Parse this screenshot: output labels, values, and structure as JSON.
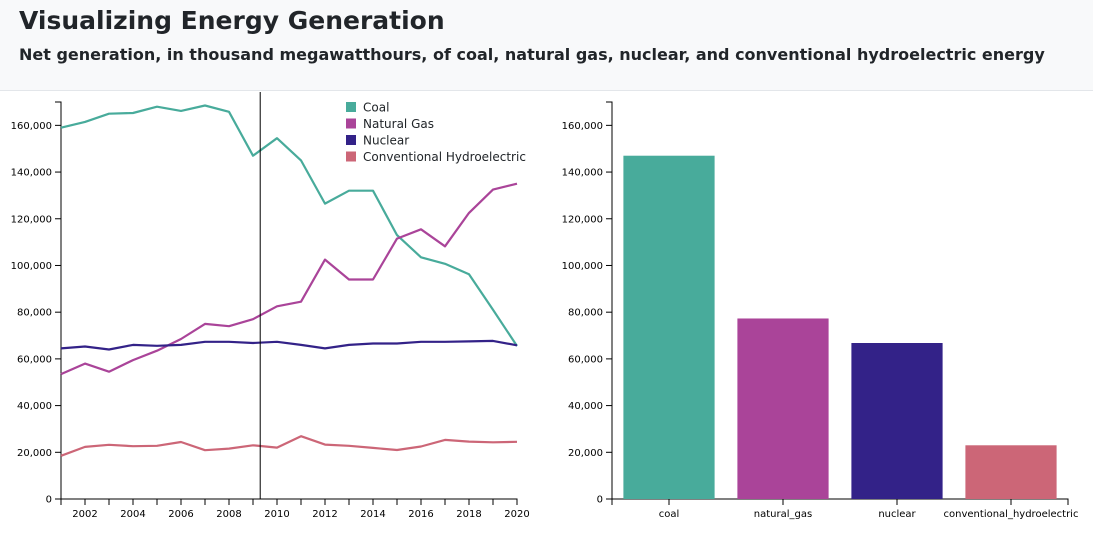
{
  "header": {
    "title": "Visualizing Energy Generation",
    "subtitle": "Net generation, in thousand megawatthours, of coal, natural gas, nuclear, and conventional hydroelectric energy"
  },
  "colors": {
    "coal": "#48ab9b",
    "natural_gas": "#aa4499",
    "nuclear": "#332288",
    "conventional_hydroelectric": "#cc6677"
  },
  "chart_data": [
    {
      "type": "line",
      "x": [
        2001,
        2002,
        2003,
        2004,
        2005,
        2006,
        2007,
        2008,
        2009,
        2010,
        2011,
        2012,
        2013,
        2014,
        2015,
        2016,
        2017,
        2018,
        2019,
        2020
      ],
      "xlim": [
        2001,
        2020
      ],
      "xticks": [
        "2002",
        "2004",
        "2006",
        "2008",
        "2010",
        "2012",
        "2014",
        "2016",
        "2018",
        "2020"
      ],
      "ylim": [
        0,
        170000
      ],
      "yticks": [
        "0",
        "20,000",
        "40,000",
        "60,000",
        "80,000",
        "100,000",
        "120,000",
        "140,000",
        "160,000"
      ],
      "marker_year": 2009.3,
      "legend_position": "top-center",
      "series": [
        {
          "name": "Coal",
          "key": "coal",
          "values": [
            159000,
            161500,
            165000,
            165300,
            168000,
            166200,
            168500,
            165800,
            147000,
            154500,
            145000,
            126500,
            132000,
            132000,
            113000,
            103500,
            100700,
            96200,
            81000,
            65500
          ]
        },
        {
          "name": "Natural Gas",
          "key": "natural_gas",
          "values": [
            53500,
            58000,
            54500,
            59500,
            63500,
            68500,
            75000,
            74000,
            77000,
            82500,
            84500,
            102500,
            94000,
            94000,
            111500,
            115500,
            108200,
            122500,
            132500,
            135000
          ]
        },
        {
          "name": "Nuclear",
          "key": "nuclear",
          "values": [
            64500,
            65300,
            64000,
            66000,
            65600,
            66000,
            67300,
            67300,
            66800,
            67300,
            66000,
            64500,
            66000,
            66600,
            66600,
            67300,
            67300,
            67500,
            67700,
            65800
          ]
        },
        {
          "name": "Conventional Hydroelectric",
          "key": "conventional_hydroelectric",
          "values": [
            18500,
            22300,
            23200,
            22600,
            22800,
            24400,
            20900,
            21600,
            23000,
            22000,
            26900,
            23300,
            22800,
            21900,
            21000,
            22500,
            25300,
            24600,
            24300,
            24500
          ]
        }
      ]
    },
    {
      "type": "bar",
      "categories": [
        "coal",
        "natural_gas",
        "nuclear",
        "conventional_hydroelectric"
      ],
      "values": [
        147000,
        77300,
        66800,
        23000
      ],
      "ylim": [
        0,
        170000
      ],
      "yticks": [
        "0",
        "20,000",
        "40,000",
        "60,000",
        "80,000",
        "100,000",
        "120,000",
        "140,000",
        "160,000"
      ]
    }
  ]
}
